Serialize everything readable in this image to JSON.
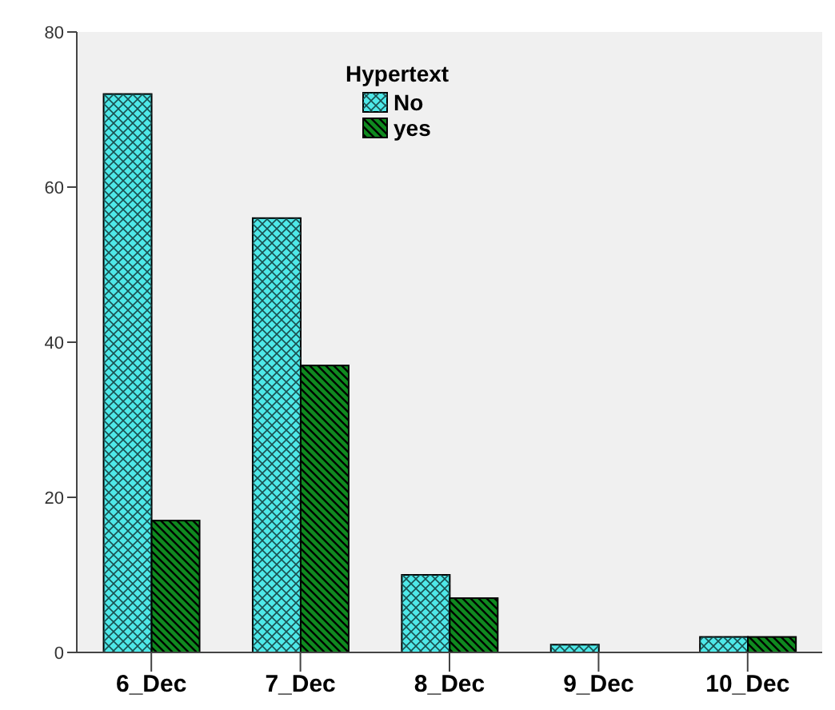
{
  "chart_data": {
    "type": "bar",
    "legend_title": "Hypertext",
    "categories": [
      "6_Dec",
      "7_Dec",
      "8_Dec",
      "9_Dec",
      "10_Dec"
    ],
    "series": [
      {
        "name": "No",
        "color": "#4ee8e8",
        "values": [
          72,
          56,
          10,
          1,
          2
        ]
      },
      {
        "name": "yes",
        "color": "#0f8a1f",
        "values": [
          17,
          37,
          7,
          0,
          2
        ]
      }
    ],
    "ylim": [
      0,
      80
    ],
    "yticks": [
      0,
      20,
      40,
      60,
      80
    ],
    "grid": false,
    "legend": "top"
  }
}
